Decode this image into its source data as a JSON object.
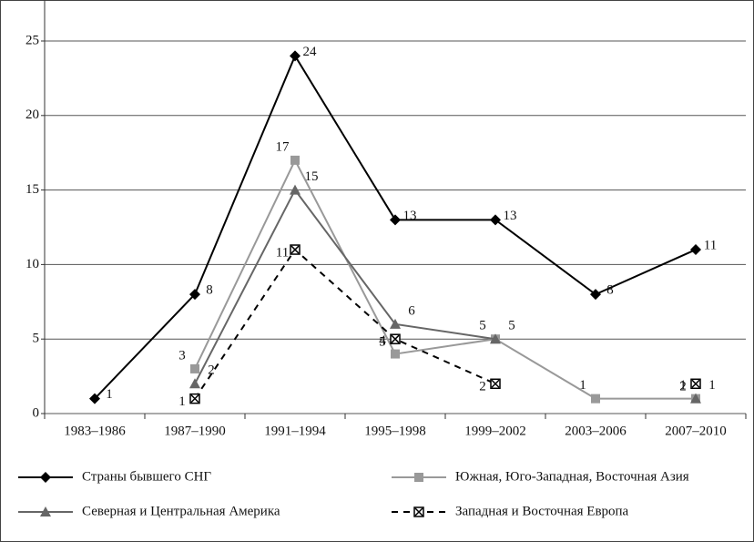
{
  "chart_data": {
    "type": "line",
    "categories": [
      "1983–1986",
      "1987–1990",
      "1991–1994",
      "1995–1998",
      "1999–2002",
      "2003–2006",
      "2007–2010"
    ],
    "series": [
      {
        "name": "Страны бывшего СНГ",
        "color": "#000000",
        "marker": "diamond",
        "dash": false,
        "values": [
          1,
          8,
          24,
          13,
          13,
          8,
          11
        ]
      },
      {
        "name": "Южная, Юго-Западная, Восточная Азия",
        "color": "#999999",
        "marker": "square",
        "dash": false,
        "values": [
          null,
          3,
          17,
          4,
          5,
          1,
          1
        ]
      },
      {
        "name": "Северная и Центральная Америка",
        "color": "#666666",
        "marker": "triangle",
        "dash": false,
        "values": [
          null,
          2,
          15,
          6,
          5,
          null,
          1
        ]
      },
      {
        "name": "Западная и Восточная Европа",
        "color": "#000000",
        "marker": "xsquare",
        "dash": true,
        "values": [
          null,
          1,
          11,
          5,
          2,
          null,
          2
        ]
      }
    ],
    "ylim": [
      0,
      25
    ],
    "yticks": [
      0,
      5,
      10,
      15,
      20,
      25
    ],
    "grid": true
  }
}
